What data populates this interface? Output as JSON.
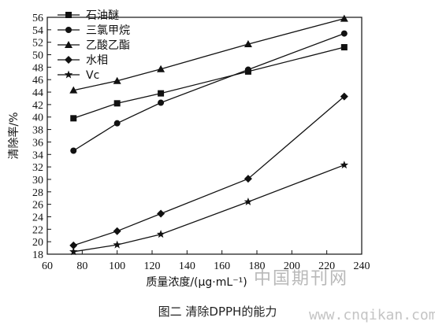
{
  "chart_data": {
    "type": "line",
    "title": "",
    "xlabel": "质量浓度/(μg·mL⁻¹)",
    "ylabel": "清除率/%",
    "xlim": [
      60,
      240
    ],
    "ylim": [
      18,
      56
    ],
    "x_ticks": [
      60,
      80,
      100,
      120,
      140,
      160,
      180,
      200,
      220,
      240
    ],
    "y_ticks": [
      18,
      20,
      22,
      24,
      26,
      28,
      30,
      32,
      34,
      36,
      38,
      40,
      42,
      44,
      46,
      48,
      50,
      52,
      54,
      56
    ],
    "x": [
      75,
      100,
      125,
      175,
      230
    ],
    "legend_position": "top-left",
    "series": [
      {
        "name": "石油醚",
        "marker": "square",
        "values": [
          39.8,
          42.2,
          43.8,
          47.3,
          51.2
        ]
      },
      {
        "name": "三氯甲烷",
        "marker": "circle",
        "values": [
          34.6,
          39.0,
          42.3,
          47.6,
          53.4
        ]
      },
      {
        "name": "乙酸乙酯",
        "marker": "triangle",
        "values": [
          44.3,
          45.8,
          47.7,
          51.7,
          55.8
        ]
      },
      {
        "name": "水相",
        "marker": "diamond",
        "values": [
          19.4,
          21.7,
          24.5,
          30.1,
          43.3
        ]
      },
      {
        "name": "Vc",
        "marker": "star",
        "values": [
          18.4,
          19.5,
          21.2,
          26.4,
          32.3
        ]
      }
    ],
    "caption": "图二  清除DPPH的能力"
  },
  "watermark": {
    "text": "中国期刊网",
    "url": "www.cnqikan.com"
  }
}
